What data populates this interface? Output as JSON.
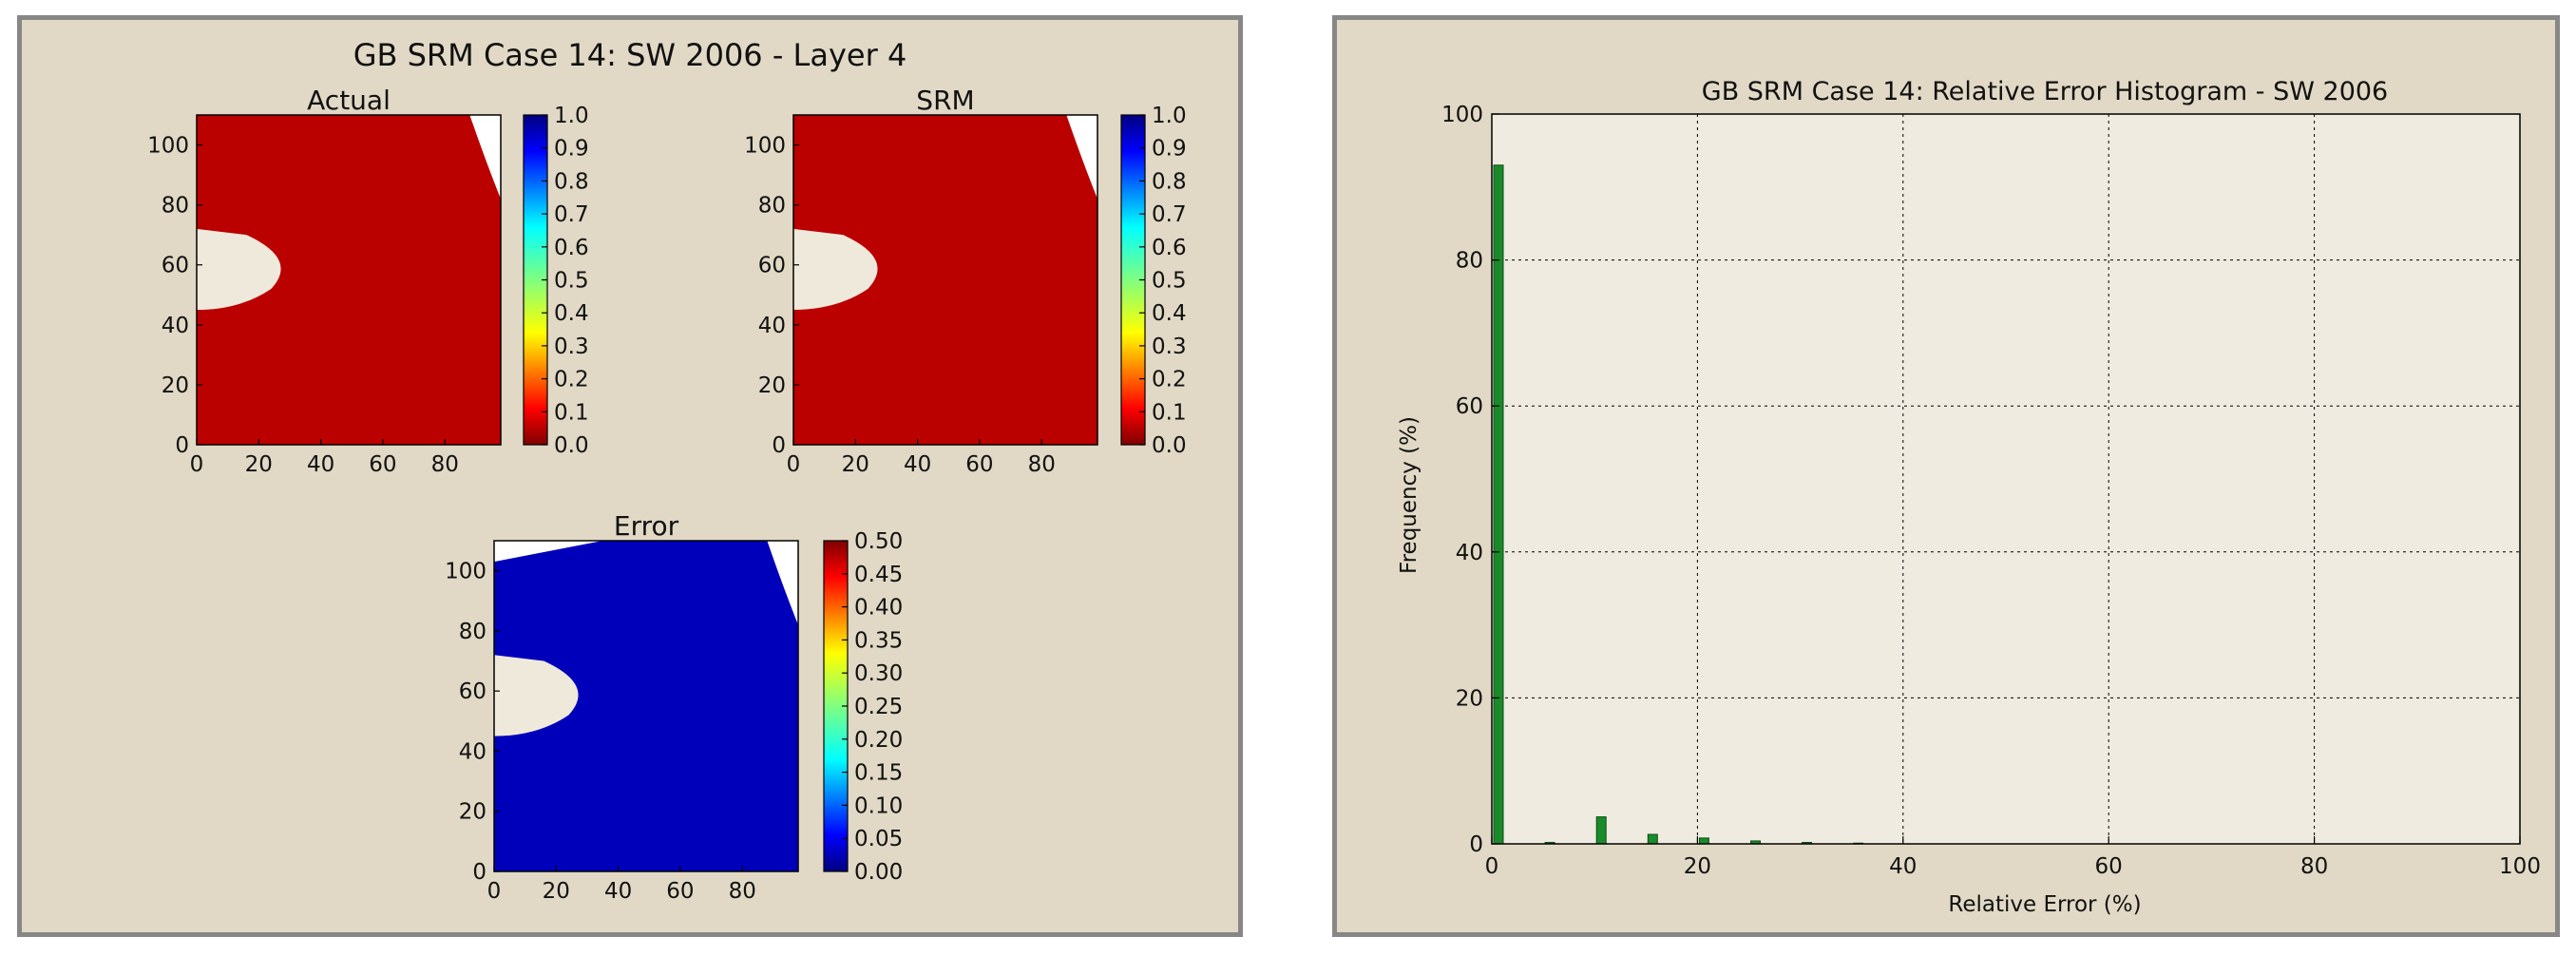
{
  "chart_data": [
    {
      "type": "heatmap",
      "suptitle": "GB SRM Case 14: SW 2006  - Layer 4",
      "subplots": [
        {
          "title": "Actual",
          "xlim": [
            0,
            98
          ],
          "ylim": [
            0,
            110
          ],
          "xticks": [
            "0",
            "20",
            "40",
            "60",
            "80"
          ],
          "yticks": [
            "0",
            "20",
            "40",
            "60",
            "80",
            "100"
          ],
          "colorbar": {
            "min": 0.0,
            "max": 1.0,
            "ticks": [
              "0.0",
              "0.1",
              "0.2",
              "0.3",
              "0.4",
              "0.5",
              "0.6",
              "0.7",
              "0.8",
              "0.9",
              "1.0"
            ],
            "colormap": [
              "#7f0000",
              "#ff0000",
              "#ff8000",
              "#ffff00",
              "#80ff80",
              "#00ffff",
              "#0080ff",
              "#0000ff",
              "#00007f"
            ]
          }
        },
        {
          "title": "SRM",
          "xlim": [
            0,
            98
          ],
          "ylim": [
            0,
            110
          ],
          "xticks": [
            "0",
            "20",
            "40",
            "60",
            "80"
          ],
          "yticks": [
            "0",
            "20",
            "40",
            "60",
            "80",
            "100"
          ],
          "colorbar": {
            "min": 0.0,
            "max": 1.0,
            "ticks": [
              "0.0",
              "0.1",
              "0.2",
              "0.3",
              "0.4",
              "0.5",
              "0.6",
              "0.7",
              "0.8",
              "0.9",
              "1.0"
            ],
            "colormap": [
              "#7f0000",
              "#ff0000",
              "#ff8000",
              "#ffff00",
              "#80ff80",
              "#00ffff",
              "#0080ff",
              "#0000ff",
              "#00007f"
            ]
          }
        },
        {
          "title": "Error",
          "xlim": [
            0,
            98
          ],
          "ylim": [
            0,
            110
          ],
          "xticks": [
            "0",
            "20",
            "40",
            "60",
            "80"
          ],
          "yticks": [
            "0",
            "20",
            "40",
            "60",
            "80",
            "100"
          ],
          "colorbar": {
            "min": 0.0,
            "max": 0.5,
            "ticks": [
              "0.00",
              "0.05",
              "0.10",
              "0.15",
              "0.20",
              "0.25",
              "0.30",
              "0.35",
              "0.40",
              "0.45",
              "0.50"
            ],
            "colormap": [
              "#00007f",
              "#0000ff",
              "#0080ff",
              "#00ffff",
              "#80ff80",
              "#ffff00",
              "#ff8000",
              "#ff0000",
              "#7f0000"
            ]
          }
        }
      ]
    },
    {
      "type": "bar",
      "title": "GB SRM Case 14: Relative Error Histogram - SW 2006",
      "xlabel": "Relative Error (%)",
      "ylabel": "Frequency (%)",
      "xlim": [
        0,
        100
      ],
      "ylim": [
        0,
        100
      ],
      "xticks": [
        "0",
        "20",
        "40",
        "60",
        "80",
        "100"
      ],
      "yticks": [
        "0",
        "20",
        "40",
        "60",
        "80",
        "100"
      ],
      "grid": true,
      "bar_color": "#1a8a2a",
      "x": [
        0,
        5,
        10,
        15,
        20,
        25,
        30,
        35
      ],
      "values": [
        93,
        0.2,
        3.7,
        1.3,
        0.8,
        0.4,
        0.2,
        0.1
      ]
    }
  ]
}
